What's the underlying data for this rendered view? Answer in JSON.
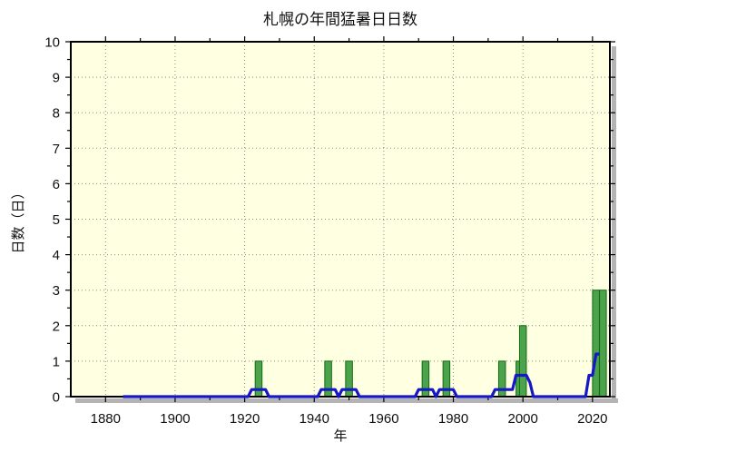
{
  "chart_data": {
    "type": "bar",
    "title": "札幌の年間猛暑日日数",
    "xlabel": "年",
    "ylabel": "日数（日）",
    "xlim": [
      1870,
      2025
    ],
    "ylim": [
      0,
      10
    ],
    "x_major_ticks": [
      1880,
      1900,
      1920,
      1940,
      1960,
      1980,
      2000,
      2020
    ],
    "x_minor_step": 10,
    "y_major_ticks": [
      0,
      1,
      2,
      3,
      4,
      5,
      6,
      7,
      8,
      9,
      10
    ],
    "y_minor_step": 0.5,
    "grid": "dotted lines at major ticks, mirrored outward ticks on all four sides",
    "legend_position": "none",
    "bars": {
      "description": "annual number of extremely hot days (max temp >= 35C)",
      "points": [
        {
          "year": 1924,
          "days": 1
        },
        {
          "year": 1944,
          "days": 1
        },
        {
          "year": 1950,
          "days": 1
        },
        {
          "year": 1972,
          "days": 1
        },
        {
          "year": 1978,
          "days": 1
        },
        {
          "year": 1994,
          "days": 1
        },
        {
          "year": 1999,
          "days": 1
        },
        {
          "year": 2000,
          "days": 2
        },
        {
          "year": 2021,
          "days": 3
        },
        {
          "year": 2023,
          "days": 3
        }
      ]
    },
    "line": {
      "description": "5-year moving average, piecewise-linear breakpoints",
      "points": [
        {
          "year": 1885,
          "value": 0
        },
        {
          "year": 1921,
          "value": 0
        },
        {
          "year": 1922,
          "value": 0.2
        },
        {
          "year": 1926,
          "value": 0.2
        },
        {
          "year": 1927,
          "value": 0
        },
        {
          "year": 1941,
          "value": 0
        },
        {
          "year": 1942,
          "value": 0.2
        },
        {
          "year": 1946,
          "value": 0.2
        },
        {
          "year": 1947,
          "value": 0
        },
        {
          "year": 1948,
          "value": 0.2
        },
        {
          "year": 1952,
          "value": 0.2
        },
        {
          "year": 1953,
          "value": 0
        },
        {
          "year": 1969,
          "value": 0
        },
        {
          "year": 1970,
          "value": 0.2
        },
        {
          "year": 1974,
          "value": 0.2
        },
        {
          "year": 1975,
          "value": 0
        },
        {
          "year": 1976,
          "value": 0.2
        },
        {
          "year": 1980,
          "value": 0.2
        },
        {
          "year": 1981,
          "value": 0
        },
        {
          "year": 1991,
          "value": 0
        },
        {
          "year": 1992,
          "value": 0.2
        },
        {
          "year": 1997,
          "value": 0.2
        },
        {
          "year": 1998,
          "value": 0.6
        },
        {
          "year": 2001,
          "value": 0.6
        },
        {
          "year": 2002,
          "value": 0.4
        },
        {
          "year": 2003,
          "value": 0
        },
        {
          "year": 2018,
          "value": 0
        },
        {
          "year": 2019,
          "value": 0.6
        },
        {
          "year": 2020,
          "value": 0.6
        },
        {
          "year": 2021,
          "value": 1.2
        },
        {
          "year": 2022,
          "value": 1.2
        }
      ]
    },
    "colors": {
      "plot_bg": "#ffffe1",
      "bar_fill": "#4da24d",
      "bar_border": "#0f6e0f",
      "line": "#1717c9",
      "grid": "#8a8a8a",
      "axis": "#000000",
      "shadow": "#b4b4b4",
      "text": "#111111"
    }
  }
}
